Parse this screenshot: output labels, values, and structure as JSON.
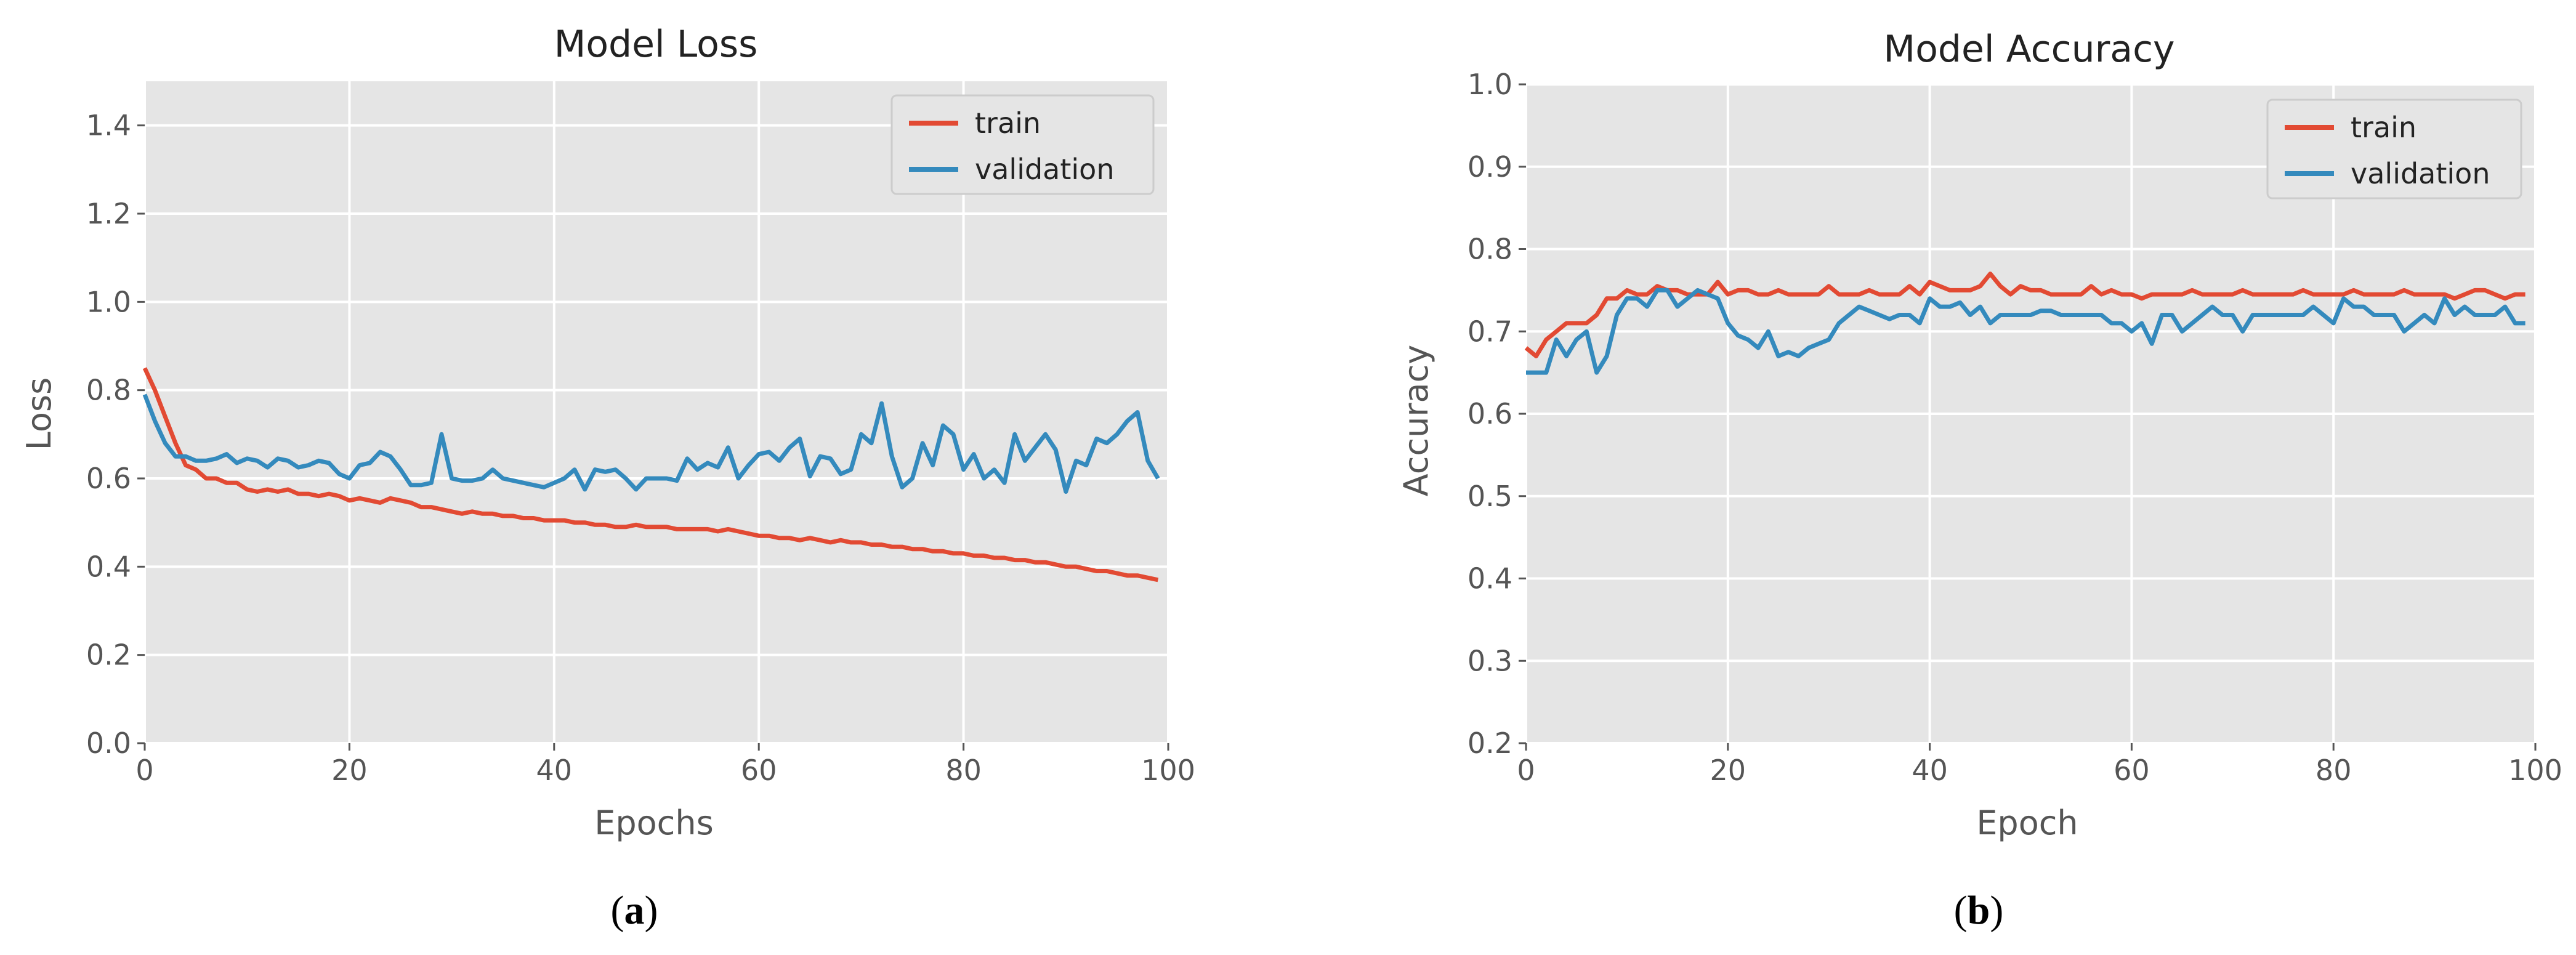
{
  "panels": [
    {
      "id": "a",
      "caption_letter": "a"
    },
    {
      "id": "b",
      "caption_letter": "b"
    }
  ],
  "colors": {
    "train": "#e24a33",
    "validation": "#348abd",
    "plot_bg": "#e5e5e5",
    "grid": "#ffffff",
    "text": "#555555",
    "title": "#222222"
  },
  "chart_data": [
    {
      "type": "line",
      "title": "Model Loss",
      "xlabel": "Epochs",
      "ylabel": "Loss",
      "xlim": [
        0,
        100
      ],
      "ylim": [
        0,
        1.5
      ],
      "xticks": [
        0,
        20,
        40,
        60,
        80,
        100
      ],
      "yticks": [
        0.0,
        0.2,
        0.4,
        0.6,
        0.8,
        1.0,
        1.2,
        1.4
      ],
      "ytick_labels": [
        "0.0",
        "0.2",
        "0.4",
        "0.6",
        "0.8",
        "1.0",
        "1.2",
        "1.4"
      ],
      "xtick_labels": [
        "0",
        "20",
        "40",
        "60",
        "80",
        "100"
      ],
      "grid": true,
      "legend": "top-right",
      "series": [
        {
          "name": "train",
          "color_key": "train",
          "x_start": 0,
          "values": [
            0.85,
            0.8,
            0.74,
            0.68,
            0.63,
            0.62,
            0.6,
            0.6,
            0.59,
            0.59,
            0.575,
            0.57,
            0.575,
            0.57,
            0.575,
            0.565,
            0.565,
            0.56,
            0.565,
            0.56,
            0.55,
            0.555,
            0.55,
            0.545,
            0.555,
            0.55,
            0.545,
            0.535,
            0.535,
            0.53,
            0.525,
            0.52,
            0.525,
            0.52,
            0.52,
            0.515,
            0.515,
            0.51,
            0.51,
            0.505,
            0.505,
            0.505,
            0.5,
            0.5,
            0.495,
            0.495,
            0.49,
            0.49,
            0.495,
            0.49,
            0.49,
            0.49,
            0.485,
            0.485,
            0.485,
            0.485,
            0.48,
            0.485,
            0.48,
            0.475,
            0.47,
            0.47,
            0.465,
            0.465,
            0.46,
            0.465,
            0.46,
            0.455,
            0.46,
            0.455,
            0.455,
            0.45,
            0.45,
            0.445,
            0.445,
            0.44,
            0.44,
            0.435,
            0.435,
            0.43,
            0.43,
            0.425,
            0.425,
            0.42,
            0.42,
            0.415,
            0.415,
            0.41,
            0.41,
            0.405,
            0.4,
            0.4,
            0.395,
            0.39,
            0.39,
            0.385,
            0.38,
            0.38,
            0.375,
            0.37
          ]
        },
        {
          "name": "validation",
          "color_key": "validation",
          "x_start": 0,
          "values": [
            0.79,
            0.73,
            0.68,
            0.65,
            0.65,
            0.64,
            0.64,
            0.645,
            0.655,
            0.635,
            0.645,
            0.64,
            0.625,
            0.645,
            0.64,
            0.625,
            0.63,
            0.64,
            0.635,
            0.61,
            0.6,
            0.63,
            0.635,
            0.66,
            0.65,
            0.62,
            0.585,
            0.585,
            0.59,
            0.7,
            0.6,
            0.595,
            0.595,
            0.6,
            0.62,
            0.6,
            0.595,
            0.59,
            0.585,
            0.58,
            0.59,
            0.6,
            0.62,
            0.575,
            0.62,
            0.615,
            0.62,
            0.6,
            0.575,
            0.6,
            0.6,
            0.6,
            0.595,
            0.645,
            0.62,
            0.635,
            0.625,
            0.67,
            0.6,
            0.63,
            0.655,
            0.66,
            0.64,
            0.67,
            0.69,
            0.605,
            0.65,
            0.645,
            0.61,
            0.62,
            0.7,
            0.68,
            0.77,
            0.65,
            0.58,
            0.6,
            0.68,
            0.63,
            0.72,
            0.7,
            0.62,
            0.655,
            0.6,
            0.62,
            0.59,
            0.7,
            0.64,
            0.67,
            0.7,
            0.665,
            0.57,
            0.64,
            0.63,
            0.69,
            0.68,
            0.7,
            0.73,
            0.75,
            0.64,
            0.6
          ]
        }
      ]
    },
    {
      "type": "line",
      "title": "Model Accuracy",
      "xlabel": "Epoch",
      "ylabel": "Accuracy",
      "xlim": [
        0,
        100
      ],
      "ylim": [
        0.2,
        1.0
      ],
      "xticks": [
        0,
        20,
        40,
        60,
        80,
        100
      ],
      "yticks": [
        0.2,
        0.3,
        0.4,
        0.5,
        0.6,
        0.7,
        0.8,
        0.9,
        1.0
      ],
      "ytick_labels": [
        "0.2",
        "0.3",
        "0.4",
        "0.5",
        "0.6",
        "0.7",
        "0.8",
        "0.9",
        "1.0"
      ],
      "xtick_labels": [
        "0",
        "20",
        "40",
        "60",
        "80",
        "100"
      ],
      "grid": true,
      "legend": "top-right",
      "series": [
        {
          "name": "train",
          "color_key": "train",
          "x_start": 0,
          "values": [
            0.68,
            0.67,
            0.69,
            0.7,
            0.71,
            0.71,
            0.71,
            0.72,
            0.74,
            0.74,
            0.75,
            0.745,
            0.745,
            0.755,
            0.75,
            0.75,
            0.745,
            0.745,
            0.745,
            0.76,
            0.745,
            0.75,
            0.75,
            0.745,
            0.745,
            0.75,
            0.745,
            0.745,
            0.745,
            0.745,
            0.755,
            0.745,
            0.745,
            0.745,
            0.75,
            0.745,
            0.745,
            0.745,
            0.755,
            0.745,
            0.76,
            0.755,
            0.75,
            0.75,
            0.75,
            0.755,
            0.77,
            0.755,
            0.745,
            0.755,
            0.75,
            0.75,
            0.745,
            0.745,
            0.745,
            0.745,
            0.755,
            0.745,
            0.75,
            0.745,
            0.745,
            0.74,
            0.745,
            0.745,
            0.745,
            0.745,
            0.75,
            0.745,
            0.745,
            0.745,
            0.745,
            0.75,
            0.745,
            0.745,
            0.745,
            0.745,
            0.745,
            0.75,
            0.745,
            0.745,
            0.745,
            0.745,
            0.75,
            0.745,
            0.745,
            0.745,
            0.745,
            0.75,
            0.745,
            0.745,
            0.745,
            0.745,
            0.74,
            0.745,
            0.75,
            0.75,
            0.745,
            0.74,
            0.745,
            0.745
          ]
        },
        {
          "name": "validation",
          "color_key": "validation",
          "x_start": 0,
          "values": [
            0.65,
            0.65,
            0.65,
            0.69,
            0.67,
            0.69,
            0.7,
            0.65,
            0.67,
            0.72,
            0.74,
            0.74,
            0.73,
            0.75,
            0.75,
            0.73,
            0.74,
            0.75,
            0.745,
            0.74,
            0.71,
            0.695,
            0.69,
            0.68,
            0.7,
            0.67,
            0.675,
            0.67,
            0.68,
            0.685,
            0.69,
            0.71,
            0.72,
            0.73,
            0.725,
            0.72,
            0.715,
            0.72,
            0.72,
            0.71,
            0.74,
            0.73,
            0.73,
            0.735,
            0.72,
            0.73,
            0.71,
            0.72,
            0.72,
            0.72,
            0.72,
            0.725,
            0.725,
            0.72,
            0.72,
            0.72,
            0.72,
            0.72,
            0.71,
            0.71,
            0.7,
            0.71,
            0.685,
            0.72,
            0.72,
            0.7,
            0.71,
            0.72,
            0.73,
            0.72,
            0.72,
            0.7,
            0.72,
            0.72,
            0.72,
            0.72,
            0.72,
            0.72,
            0.73,
            0.72,
            0.71,
            0.74,
            0.73,
            0.73,
            0.72,
            0.72,
            0.72,
            0.7,
            0.71,
            0.72,
            0.71,
            0.74,
            0.72,
            0.73,
            0.72,
            0.72,
            0.72,
            0.73,
            0.71,
            0.71
          ]
        }
      ]
    }
  ]
}
